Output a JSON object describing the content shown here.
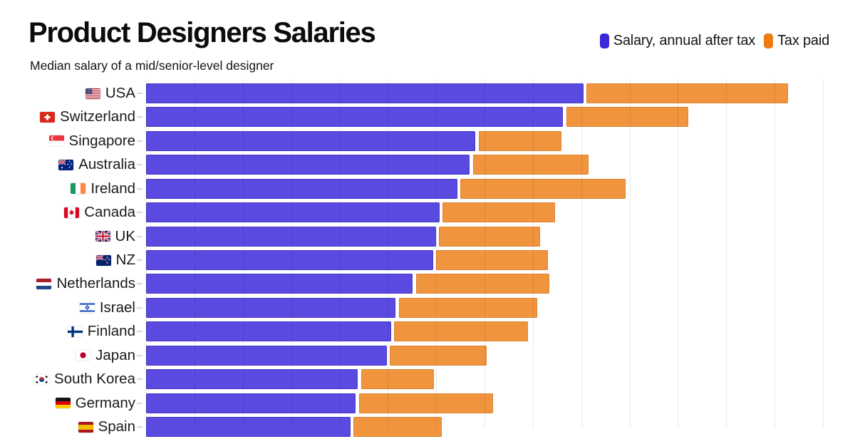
{
  "title": "Product Designers Salaries",
  "subtitle": "Median salary of a mid/senior-level designer",
  "legend": {
    "position": "top-right",
    "items": [
      {
        "label": "Salary, annual after tax",
        "color": "#3a28d9"
      },
      {
        "label": "Tax paid",
        "color": "#ed7d12"
      }
    ]
  },
  "colors": {
    "salary_bar": "#5b4ae0",
    "salary_border": "#4538c9",
    "tax_bar": "#f0943e",
    "tax_border": "#de8230",
    "gridline": "rgba(0,0,0,0.085)",
    "tick": "#d6d6d6",
    "text": "#1a1a1a"
  },
  "chart_data": {
    "type": "bar",
    "orientation": "horizontal",
    "stacked": true,
    "title": "Product Designers Salaries",
    "subtitle": "Median salary of a mid/senior-level designer",
    "x_axis": {
      "tick_labels_visible": false,
      "gridlines": true,
      "estimated_step_per_gridline": 10,
      "estimated_range": [
        0,
        140
      ]
    },
    "values_note": "Axis labels are cut off below the visible area; values estimated from gridlines (1 gridline = 10 units).",
    "categories": [
      {
        "label": "USA",
        "flag": "usa"
      },
      {
        "label": "Switzerland",
        "flag": "switzerland"
      },
      {
        "label": "Singapore",
        "flag": "singapore"
      },
      {
        "label": "Australia",
        "flag": "australia"
      },
      {
        "label": "Ireland",
        "flag": "ireland"
      },
      {
        "label": "Canada",
        "flag": "canada"
      },
      {
        "label": "UK",
        "flag": "uk"
      },
      {
        "label": "NZ",
        "flag": "nz"
      },
      {
        "label": "Netherlands",
        "flag": "netherlands"
      },
      {
        "label": "Israel",
        "flag": "israel"
      },
      {
        "label": "Finland",
        "flag": "finland"
      },
      {
        "label": "Japan",
        "flag": "japan"
      },
      {
        "label": "South Korea",
        "flag": "south-korea"
      },
      {
        "label": "Germany",
        "flag": "germany"
      },
      {
        "label": "Spain",
        "flag": "spain"
      }
    ],
    "series": [
      {
        "name": "Salary, annual after tax",
        "values": [
          90.4,
          86.2,
          68.1,
          66.9,
          64.3,
          60.6,
          59.9,
          59.3,
          55.1,
          51.6,
          50.6,
          49.7,
          43.8,
          43.3,
          42.2
        ]
      },
      {
        "name": "Tax paid",
        "values": [
          41.7,
          25.2,
          17.1,
          23.9,
          34.2,
          23.3,
          20.9,
          23.1,
          27.6,
          28.5,
          27.7,
          20.0,
          15.0,
          27.7,
          18.3
        ]
      }
    ]
  }
}
